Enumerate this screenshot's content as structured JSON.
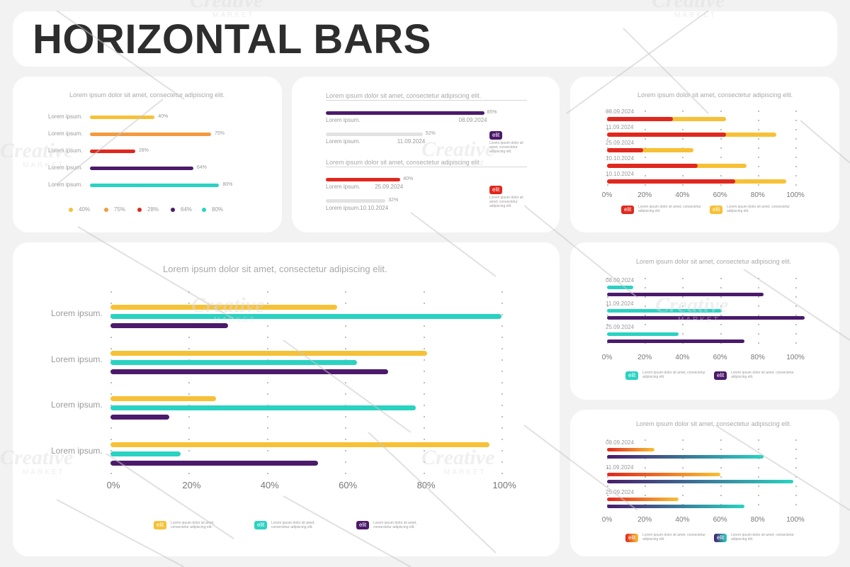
{
  "title": "HORIZONTAL BARS",
  "colors": {
    "yellow": "#f6c136",
    "orange": "#f39a3e",
    "red": "#e0281e",
    "purple": "#4b1a6b",
    "teal": "#2ad2c2",
    "gray": "#e2e2e2"
  },
  "watermark": {
    "text": "Creative",
    "sub": "MARKET"
  },
  "panel1": {
    "subtitle": "Lorem ipsum dolor sit amet, consectetur adipiscing elit.",
    "rows": [
      {
        "label": "Lorem ipsum.",
        "value": 40,
        "value_label": "40%",
        "color": "#f6c136"
      },
      {
        "label": "Lorem ipsum.",
        "value": 75,
        "value_label": "75%",
        "color": "#f39a3e"
      },
      {
        "label": "Lorem ipsum.",
        "value": 28,
        "value_label": "28%",
        "color": "#e0281e"
      },
      {
        "label": "Lorem ipsum.",
        "value": 64,
        "value_label": "64%",
        "color": "#4b1a6b"
      },
      {
        "label": "Lorem ipsum.",
        "value": 80,
        "value_label": "80%",
        "color": "#2ad2c2"
      }
    ],
    "legend": [
      "40%",
      "75%",
      "28%",
      "64%",
      "80%"
    ]
  },
  "panel2": {
    "groups": [
      {
        "heading": "Lorem ipsum dolor sit amet, consectetur adipiscing elit.",
        "bars": [
          {
            "value": 85,
            "value_label": "85%",
            "label": "Lorem ipsum.",
            "date": "08.09.2024",
            "color": "#4b1a6b"
          },
          {
            "value": 52,
            "value_label": "52%",
            "label": "Lorem ipsum.",
            "date": "11.09.2024",
            "color": "#e2e2e2"
          }
        ],
        "badge": "elit",
        "badge_color": "#4b1a6b",
        "note": [
          "Lorem ipsum dolor sit",
          "amet, consectetur",
          "adipiscing elit."
        ]
      },
      {
        "heading": "Lorem ipsum dolor sit amet, consectetur adipiscing elit.",
        "bars": [
          {
            "value": 40,
            "value_label": "40%",
            "label": "Lorem ipsum.",
            "date": "25.09.2024",
            "color": "#e0281e"
          },
          {
            "value": 32,
            "value_label": "32%",
            "label": "Lorem ipsum.",
            "date": "10.10.2024",
            "color": "#e2e2e2"
          }
        ],
        "badge": "elit",
        "badge_color": "#e0281e",
        "note": [
          "Lorem ipsum dolor sit",
          "amet, consectetur",
          "adipiscing elit."
        ]
      }
    ]
  },
  "panel3": {
    "subtitle": "Lorem ipsum dolor sit amet, consectetur adipiscing elit.",
    "x_ticks": [
      "0%",
      "20%",
      "40%",
      "60%",
      "80%",
      "100%"
    ],
    "groups": [
      {
        "date": "08.09.2024",
        "a": 35,
        "b": 63
      },
      {
        "date": "11.09.2024",
        "a": 63,
        "b": 90
      },
      {
        "date": "25.09.2024",
        "a": 19,
        "b": 46
      },
      {
        "date": "10.10.2024",
        "a": 48,
        "b": 74
      },
      {
        "date": "10.10.2024",
        "a": 68,
        "b": 95
      }
    ],
    "series_colors": [
      "#e0281e",
      "#f6c136"
    ],
    "legend": [
      {
        "badge": "elit",
        "color": "#e0281e",
        "text": [
          "Lorem ipsum dolor sit amet, consectetur",
          "adipiscing elit."
        ]
      },
      {
        "badge": "elit",
        "color": "#f6c136",
        "text": [
          "Lorem ipsum dolor sit amet, consectetur",
          "adipiscing elit."
        ]
      }
    ]
  },
  "panel4": {
    "subtitle": "Lorem ipsum dolor sit amet, consectetur adipiscing elit.",
    "x_ticks": [
      "0%",
      "20%",
      "40%",
      "60%",
      "80%",
      "100%"
    ],
    "categories": [
      "Lorem ipsum.",
      "Lorem ipsum.",
      "Lorem ipsum.",
      "Lorem ipsum."
    ],
    "series": [
      {
        "name": "",
        "color": "#f6c136",
        "values": [
          58,
          81,
          27,
          97
        ]
      },
      {
        "name": "",
        "color": "#2ad2c2",
        "values": [
          100,
          63,
          78,
          18
        ]
      },
      {
        "name": "",
        "color": "#4b1a6b",
        "values": [
          30,
          71,
          15,
          53
        ]
      }
    ],
    "legend": [
      {
        "badge": "elit",
        "color": "#f6c136",
        "text": [
          "Lorem ipsum dolor sit amet,",
          "consectetur adipiscing elit."
        ]
      },
      {
        "badge": "elit",
        "color": "#2ad2c2",
        "text": [
          "Lorem ipsum dolor sit amet,",
          "consectetur adipiscing elit."
        ]
      },
      {
        "badge": "elit",
        "color": "#4b1a6b",
        "text": [
          "Lorem ipsum dolor sit amet,",
          "consectetur adipiscing elit."
        ]
      }
    ]
  },
  "panel5": {
    "subtitle": "Lorem ipsum dolor sit amet, consectetur adipiscing elit.",
    "x_ticks": [
      "0%",
      "20%",
      "40%",
      "60%",
      "80%",
      "100%"
    ],
    "groups": [
      {
        "date": "08.09.2024",
        "a": 14,
        "b": 83
      },
      {
        "date": "11.09.2024",
        "a": 61,
        "b": 105
      },
      {
        "date": "25.09.2024",
        "a": 38,
        "b": 73
      }
    ],
    "series_colors": [
      "#2ad2c2",
      "#4b1a6b"
    ],
    "legend": [
      {
        "badge": "elit",
        "color": "#2ad2c2",
        "text": [
          "Lorem ipsum dolor sit amet, consectetur",
          "adipiscing elit."
        ]
      },
      {
        "badge": "elit",
        "color": "#4b1a6b",
        "text": [
          "Lorem ipsum dolor sit amet, consectetur",
          "adipiscing elit."
        ]
      }
    ]
  },
  "panel6": {
    "subtitle": "Lorem ipsum dolor sit amet, consectetur adipiscing elit.",
    "x_ticks": [
      "0%",
      "20%",
      "40%",
      "60%",
      "80%",
      "100%"
    ],
    "groups": [
      {
        "date": "08.09.2024",
        "a": 25,
        "b": 83
      },
      {
        "date": "11.09.2024",
        "a": 60,
        "b": 99
      },
      {
        "date": "25.09.2024",
        "a": 38,
        "b": 73
      }
    ],
    "gradients": [
      [
        "#e0281e",
        "#f6c136"
      ],
      [
        "#4b1a6b",
        "#2ad2c2"
      ]
    ],
    "legend": [
      {
        "badge": "elit",
        "grad": [
          "#e0281e",
          "#f6c136"
        ],
        "text": [
          "Lorem ipsum dolor sit amet, consectetur",
          "adipiscing elit."
        ]
      },
      {
        "badge": "elit",
        "grad": [
          "#4b1a6b",
          "#2ad2c2"
        ],
        "text": [
          "Lorem ipsum dolor sit amet, consectetur",
          "adipiscing elit."
        ]
      }
    ]
  },
  "chart_data": [
    {
      "type": "bar",
      "title": "Lorem ipsum dolor sit amet, consectetur adipiscing elit.",
      "categories": [
        "Lorem ipsum.",
        "Lorem ipsum.",
        "Lorem ipsum.",
        "Lorem ipsum.",
        "Lorem ipsum."
      ],
      "values": [
        40,
        75,
        28,
        64,
        80
      ],
      "xlim": [
        0,
        100
      ]
    },
    {
      "type": "bar",
      "title": "Lorem ipsum dolor sit amet, consectetur adipiscing elit.",
      "categories": [
        "08.09.2024",
        "11.09.2024",
        "25.09.2024",
        "10.10.2024"
      ],
      "values": [
        85,
        52,
        40,
        32
      ],
      "xlim": [
        0,
        100
      ]
    },
    {
      "type": "bar",
      "title": "Lorem ipsum dolor sit amet, consectetur adipiscing elit.",
      "categories": [
        "08.09.2024",
        "11.09.2024",
        "25.09.2024",
        "10.10.2024",
        "10.10.2024"
      ],
      "series": [
        {
          "values": [
            35,
            63,
            19,
            48,
            68
          ]
        },
        {
          "values": [
            63,
            90,
            46,
            74,
            95
          ]
        }
      ],
      "xlim": [
        0,
        100
      ],
      "grid": true
    },
    {
      "type": "bar",
      "title": "Lorem ipsum dolor sit amet, consectetur adipiscing elit.",
      "categories": [
        "Lorem ipsum.",
        "Lorem ipsum.",
        "Lorem ipsum.",
        "Lorem ipsum."
      ],
      "series": [
        {
          "values": [
            58,
            81,
            27,
            97
          ]
        },
        {
          "values": [
            100,
            63,
            78,
            18
          ]
        },
        {
          "values": [
            30,
            71,
            15,
            53
          ]
        }
      ],
      "xlim": [
        0,
        100
      ],
      "grid": true
    },
    {
      "type": "bar",
      "title": "Lorem ipsum dolor sit amet, consectetur adipiscing elit.",
      "categories": [
        "08.09.2024",
        "11.09.2024",
        "25.09.2024"
      ],
      "series": [
        {
          "values": [
            14,
            61,
            38
          ]
        },
        {
          "values": [
            83,
            105,
            73
          ]
        }
      ],
      "xlim": [
        0,
        100
      ],
      "grid": true
    },
    {
      "type": "bar",
      "title": "Lorem ipsum dolor sit amet, consectetur adipiscing elit.",
      "categories": [
        "08.09.2024",
        "11.09.2024",
        "25.09.2024"
      ],
      "series": [
        {
          "values": [
            25,
            60,
            38
          ]
        },
        {
          "values": [
            83,
            99,
            73
          ]
        }
      ],
      "xlim": [
        0,
        100
      ],
      "grid": true
    }
  ]
}
